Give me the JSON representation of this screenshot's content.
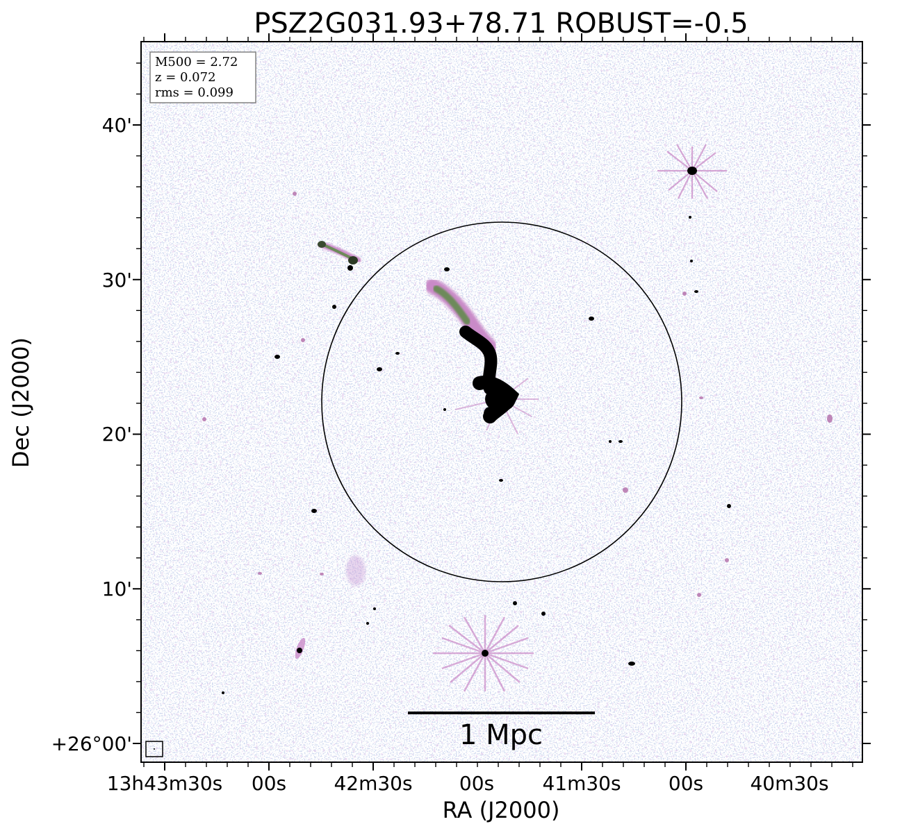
{
  "title": "PSZ2G031.93+78.71 ROBUST=-0.5",
  "axes": {
    "xlabel": "RA (J2000)",
    "ylabel": "Dec (J2000)",
    "ra_ticks": [
      "13h43m30s",
      "00s",
      "42m30s",
      "00s",
      "41m30s",
      "00s",
      "40m30s"
    ],
    "dec_ticks": [
      "40'",
      "30'",
      "20'",
      "10'",
      "+26°00'"
    ]
  },
  "info_box": {
    "lines": [
      "M500 = 2.72",
      "z = 0.072",
      "rms = 0.099"
    ]
  },
  "scale_bar": {
    "label": "1 Mpc"
  },
  "colors": {
    "noise_blue": "#9fb0dc",
    "noise_purple": "#c08ad0",
    "source_pink": "#c98ac8",
    "source_green": "#6d8a5a",
    "source_core": "#000000",
    "frame": "#000000",
    "info_border": "#808080"
  }
}
